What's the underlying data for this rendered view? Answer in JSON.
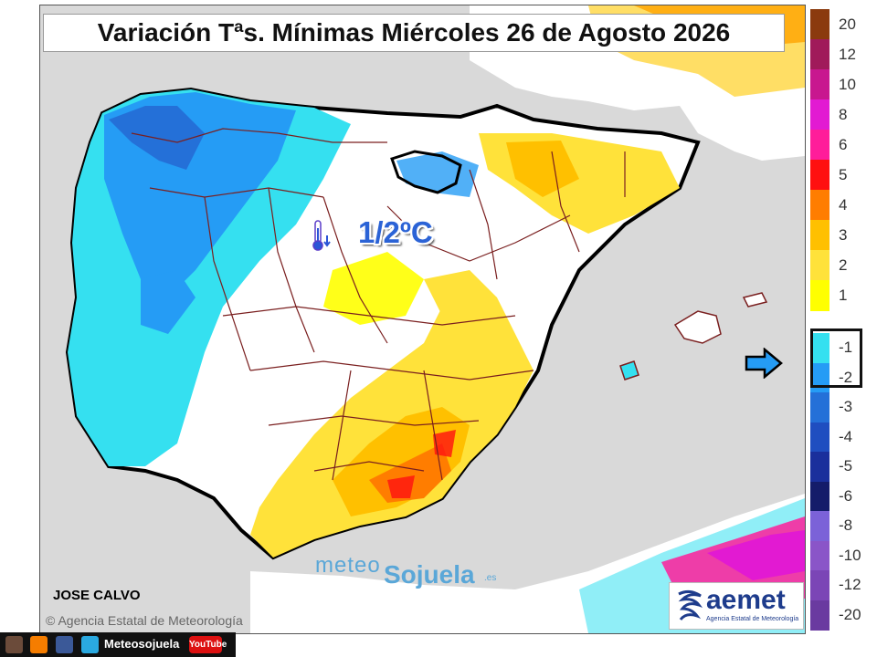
{
  "title": "Variación Tªs. Mínimas Miércoles 26 de Agosto 2026",
  "value_label": "1/2ºC",
  "thermometer_icon": "thermometer-down-icon",
  "author": "JOSE CALVO",
  "agency": "Agencia Estatal de Meteorología",
  "agency_symbol": "©",
  "brand": {
    "part1": "meteo",
    "part2": "Sojuela",
    "suffix": ".es"
  },
  "aemet": {
    "name": "aemet",
    "subtitle": "Agencia Estatal de Meteorología"
  },
  "social": {
    "handle": "Meteosojuela",
    "youtube": "YouTube",
    "icons": [
      "instagram-icon",
      "blogger-icon",
      "facebook-icon",
      "twitter-icon"
    ]
  },
  "legend": {
    "highlighted": [
      "-1",
      "-2"
    ],
    "items": [
      {
        "label": "20",
        "color": "#8b3a0e"
      },
      {
        "label": "12",
        "color": "#a01a5a"
      },
      {
        "label": "10",
        "color": "#c8178f"
      },
      {
        "label": "8",
        "color": "#e21ad2"
      },
      {
        "label": "6",
        "color": "#ff1d9a"
      },
      {
        "label": "5",
        "color": "#ff1010"
      },
      {
        "label": "4",
        "color": "#ff7d00"
      },
      {
        "label": "3",
        "color": "#ffc000"
      },
      {
        "label": "2",
        "color": "#ffe23a"
      },
      {
        "label": "1",
        "color": "#ffff00"
      },
      {
        "label": "-1",
        "color": "#35e0f0"
      },
      {
        "label": "-2",
        "color": "#259cf5"
      },
      {
        "label": "-3",
        "color": "#2470d8"
      },
      {
        "label": "-4",
        "color": "#1f4ec0"
      },
      {
        "label": "-5",
        "color": "#1a2f9c"
      },
      {
        "label": "-6",
        "color": "#141c6a"
      },
      {
        "label": "-8",
        "color": "#7b62d8"
      },
      {
        "label": "-10",
        "color": "#8a55c8"
      },
      {
        "label": "-12",
        "color": "#7b45b6"
      },
      {
        "label": "-20",
        "color": "#6a3aa0"
      }
    ]
  },
  "colors": {
    "land": "#ffffff",
    "sea": "#d9d9d9",
    "coast": "#000000",
    "borders": "#7a1f1f"
  }
}
